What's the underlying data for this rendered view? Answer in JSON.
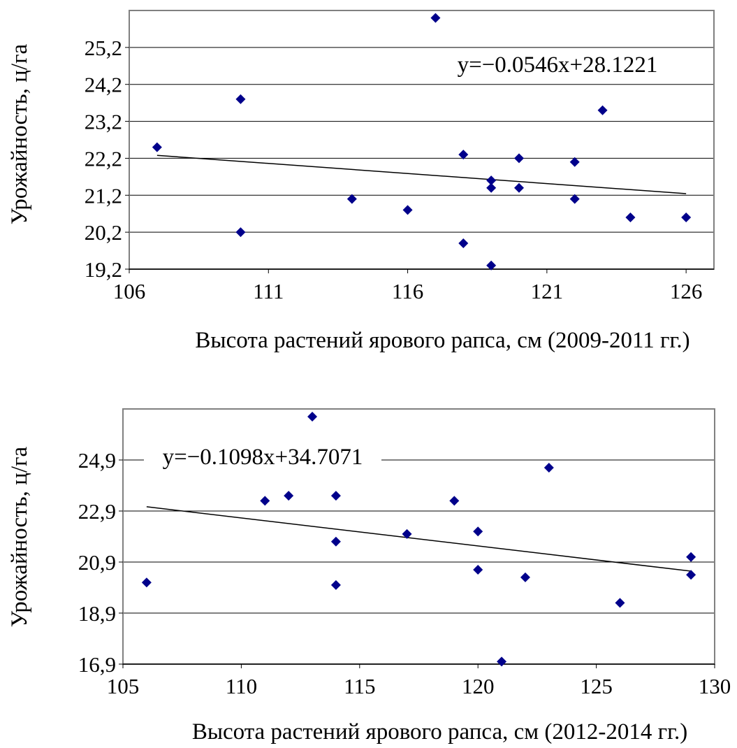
{
  "chart_data": [
    {
      "type": "scatter",
      "title": "",
      "xlabel": "Высота растений ярового рапса, см (2009-2011 гг.)",
      "ylabel": "Урожайность, ц/га",
      "xlim": [
        106,
        127
      ],
      "ylim": [
        19.2,
        26.2
      ],
      "xticks": [
        "106",
        "111",
        "116",
        "121",
        "126"
      ],
      "xtick_values": [
        106,
        111,
        116,
        121,
        126
      ],
      "yticks": [
        "19,2",
        "20,2",
        "21,2",
        "22,2",
        "23,2",
        "24,2",
        "25,2"
      ],
      "ytick_values": [
        19.2,
        20.2,
        21.2,
        22.2,
        23.2,
        24.2,
        25.2
      ],
      "grid": true,
      "marker_color": "#00008b",
      "equation": "y=−0.0546x+28.1221",
      "trendline": {
        "slope": -0.0546,
        "intercept": 28.1221,
        "x_range": [
          107,
          126
        ]
      },
      "points": [
        [
          107,
          22.5
        ],
        [
          110,
          23.8
        ],
        [
          110,
          20.2
        ],
        [
          114,
          21.1
        ],
        [
          116,
          20.8
        ],
        [
          117,
          26.0
        ],
        [
          118,
          22.3
        ],
        [
          118,
          19.9
        ],
        [
          119,
          21.6
        ],
        [
          119,
          21.4
        ],
        [
          119,
          19.3
        ],
        [
          120,
          22.2
        ],
        [
          120,
          21.4
        ],
        [
          122,
          22.1
        ],
        [
          122,
          21.1
        ],
        [
          123,
          23.5
        ],
        [
          124,
          20.6
        ],
        [
          126,
          20.6
        ]
      ]
    },
    {
      "type": "scatter",
      "title": "",
      "xlabel": "Высота растений ярового рапса, см (2012-2014 гг.)",
      "ylabel": "Урожайность, ц/га",
      "xlim": [
        105,
        130
      ],
      "ylim": [
        16.9,
        26.9
      ],
      "xticks": [
        "105",
        "110",
        "115",
        "120",
        "125",
        "130"
      ],
      "xtick_values": [
        105,
        110,
        115,
        120,
        125,
        130
      ],
      "yticks": [
        "16,9",
        "18,9",
        "20,9",
        "22,9",
        "24,9"
      ],
      "ytick_values": [
        16.9,
        18.9,
        20.9,
        22.9,
        24.9
      ],
      "grid": true,
      "marker_color": "#00008b",
      "equation": "y=−0.1098x+34.7071",
      "trendline": {
        "slope": -0.1098,
        "intercept": 34.7071,
        "x_range": [
          106,
          129
        ]
      },
      "points": [
        [
          106,
          20.1
        ],
        [
          111,
          23.3
        ],
        [
          112,
          23.5
        ],
        [
          113,
          26.6
        ],
        [
          114,
          23.5
        ],
        [
          114,
          21.7
        ],
        [
          114,
          20.0
        ],
        [
          117,
          22.0
        ],
        [
          119,
          23.3
        ],
        [
          120,
          22.1
        ],
        [
          120,
          20.6
        ],
        [
          121,
          17.0
        ],
        [
          122,
          20.3
        ],
        [
          123,
          24.6
        ],
        [
          126,
          19.3
        ],
        [
          129,
          21.1
        ],
        [
          129,
          20.4
        ]
      ]
    }
  ]
}
